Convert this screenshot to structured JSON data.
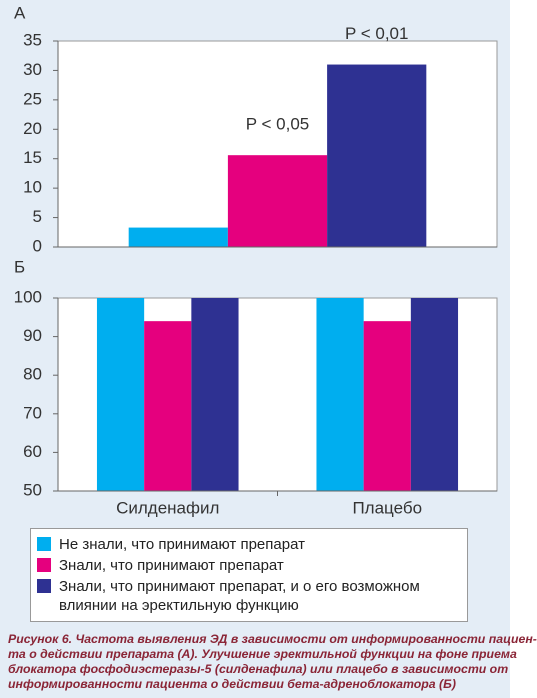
{
  "chart_data": [
    {
      "type": "bar",
      "label": "А",
      "categories": [
        null
      ],
      "series": [
        {
          "color": "#00aeef",
          "values": [
            3.3
          ]
        },
        {
          "color": "#e5007e",
          "values": [
            15.6
          ]
        },
        {
          "color": "#2e3192",
          "values": [
            31
          ]
        }
      ],
      "annotations": [
        "P < 0,05",
        "P < 0,01"
      ],
      "ylim": [
        0,
        35
      ],
      "yticks": [
        0,
        5,
        10,
        15,
        20,
        25,
        30,
        35
      ],
      "grid": false
    },
    {
      "type": "bar",
      "label": "Б",
      "categories": [
        "Силденафил",
        "Плацебо"
      ],
      "series": [
        {
          "name": "Не знали, что принимают препарат",
          "color": "#00aeef",
          "values": [
            100,
            100
          ]
        },
        {
          "name": "Знали, что принимают препарат",
          "color": "#e5007e",
          "values": [
            94,
            94
          ]
        },
        {
          "name": "Знали, что принимают препарат, и о его возможном влиянии на эректильную функцию",
          "color": "#2e3192",
          "values": [
            100,
            100
          ]
        }
      ],
      "ylim": [
        50,
        100
      ],
      "yticks": [
        50,
        60,
        70,
        80,
        90,
        100
      ],
      "grid": false
    }
  ],
  "caption": [
    "Рисунок 6. Частота выявления ЭД в зависимости от информированности пациен-",
    "та о действии препарата (А). Улучшение эректильной функции на фоне приема",
    "блокатора фосфодиэстеразы-5 (силденафила) или плацебо в зависимости от",
    "информированности пациента о действии бета-адреноблокатора (Б)"
  ]
}
